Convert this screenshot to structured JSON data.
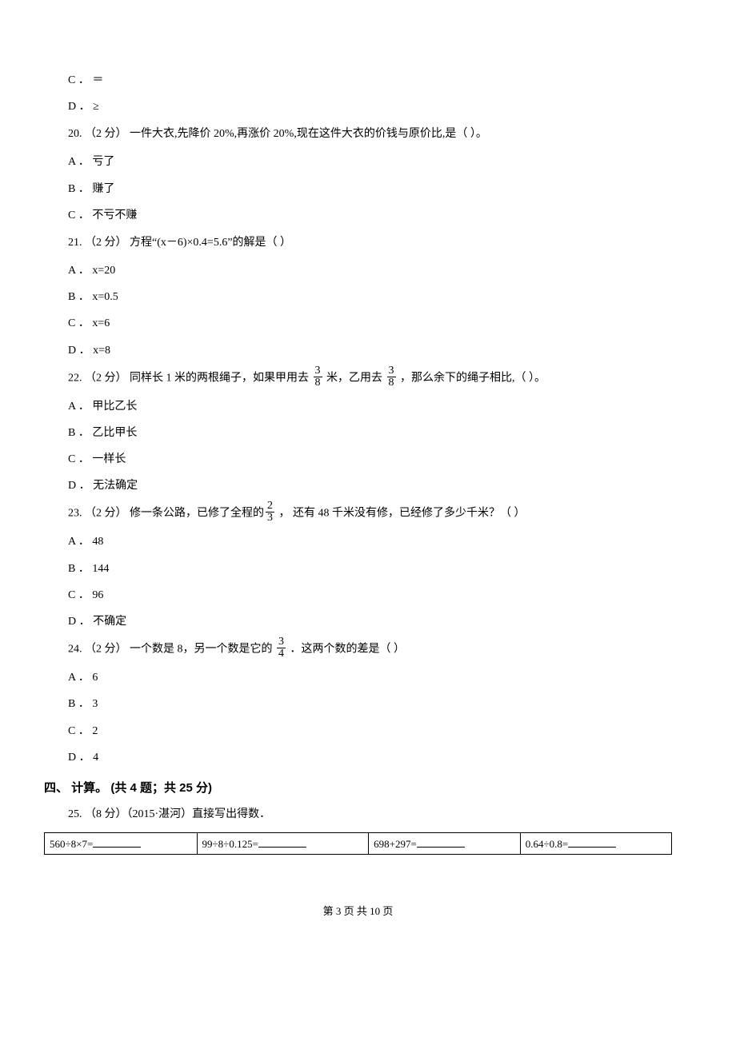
{
  "options_cd": {
    "c": "C ． ＝",
    "d": "D ． ≥"
  },
  "q20": {
    "text": "20. （2 分） 一件大衣,先降价 20%,再涨价 20%,现在这件大衣的价钱与原价比,是（    ）。",
    "a": "A ． 亏了",
    "b": "B ． 赚了",
    "c": "C ． 不亏不赚"
  },
  "q21": {
    "text": "21. （2 分） 方程“(x－6)×0.4=5.6”的解是（    ）",
    "a": "A ． x=20",
    "b": "B ． x=0.5",
    "c": "C ． x=6",
    "d": "D ． x=8"
  },
  "q22": {
    "pre": "22. （2 分） 同样长 1 米的两根绳子，如果甲用去 ",
    "mid": " 米，乙用去 ",
    "post": " ，那么余下的绳子相比,（    ）。",
    "frac_num": "3",
    "frac_den": "8",
    "a": "A ． 甲比乙长",
    "b": "B ． 乙比甲长",
    "c": "C ． 一样长",
    "d": "D ． 无法确定"
  },
  "q23": {
    "pre": "23. （2 分） 修一条公路，已修了全程的",
    "post": " ， 还有 48 千米没有修，已经修了多少千米？（    ）",
    "frac_num": "2",
    "frac_den": "3",
    "a": "A ． 48",
    "b": "B ． 144",
    "c": "C ． 96",
    "d": "D ． 不确定"
  },
  "q24": {
    "pre": "24. （2 分） 一个数是 8，另一个数是它的 ",
    "post": " ．这两个数的差是（    ）",
    "frac_num": "3",
    "frac_den": "4",
    "a": "A ． 6",
    "b": "B ． 3",
    "c": "C ． 2",
    "d": "D ． 4"
  },
  "section4": "四、 计算。 (共 4 题；共 25 分)",
  "q25": {
    "text": "25. （8 分）（2015·湛河）直接写出得数．",
    "cells": {
      "c1": "560÷8×7=",
      "c2": "99÷8÷0.125=",
      "c3": "698+297=",
      "c4": "0.64÷0.8="
    }
  },
  "footer": "第 3 页 共 10 页"
}
